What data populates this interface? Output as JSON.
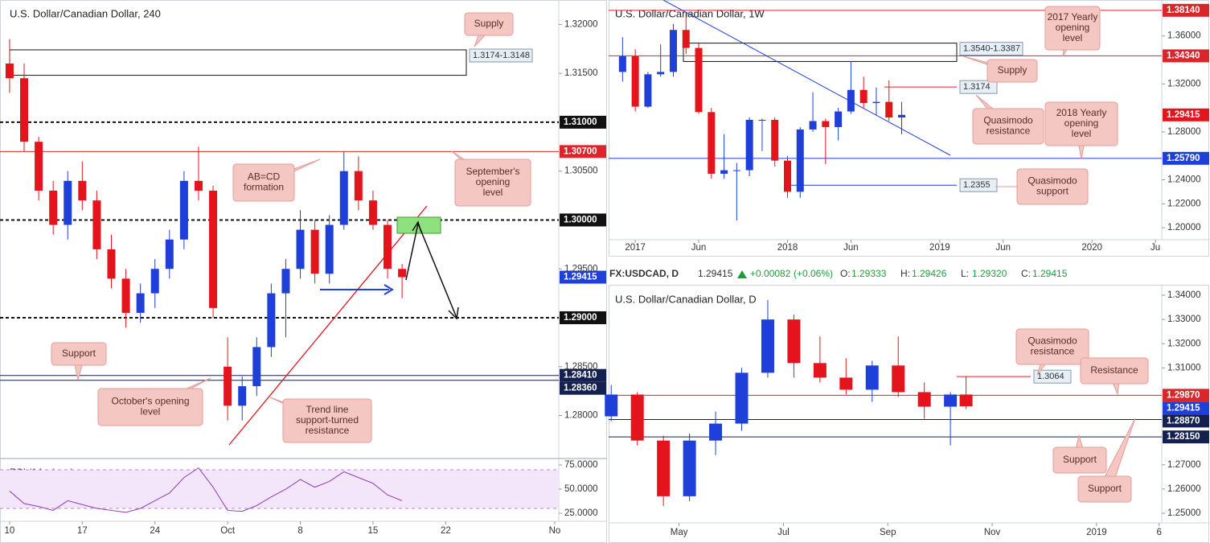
{
  "chart_data": [
    {
      "type": "candlestick",
      "title": "U.S. Dollar/Canadian Dollar, 240",
      "up_color": "#1f3fd9",
      "down_color": "#e3141c",
      "open": [
        1.316,
        1.3145,
        1.308,
        1.303,
        1.2995,
        1.304,
        1.302,
        1.297,
        1.294,
        1.2905,
        1.2925,
        1.295,
        1.298,
        1.304,
        1.303,
        1.285,
        1.281,
        1.283,
        1.287,
        1.2925,
        1.295,
        1.299,
        1.2945,
        1.2995,
        1.305,
        1.302,
        1.2995,
        1.295
      ],
      "high": [
        1.3185,
        1.316,
        1.3085,
        1.304,
        1.305,
        1.306,
        1.303,
        1.2985,
        1.295,
        1.2935,
        1.296,
        1.299,
        1.305,
        1.3075,
        1.3035,
        1.288,
        1.284,
        1.288,
        1.2935,
        1.296,
        1.301,
        1.3,
        1.3005,
        1.307,
        1.3065,
        1.303,
        1.3,
        1.2955
      ],
      "low": [
        1.313,
        1.307,
        1.302,
        1.2985,
        1.298,
        1.301,
        1.296,
        1.293,
        1.289,
        1.2895,
        1.291,
        1.294,
        1.297,
        1.302,
        1.29,
        1.2795,
        1.2795,
        1.282,
        1.286,
        1.288,
        1.294,
        1.2935,
        1.2935,
        1.299,
        1.301,
        1.299,
        1.294,
        1.292
      ],
      "close": [
        1.3145,
        1.308,
        1.303,
        1.2995,
        1.304,
        1.302,
        1.297,
        1.294,
        1.2905,
        1.2925,
        1.295,
        1.298,
        1.304,
        1.303,
        1.291,
        1.281,
        1.283,
        1.287,
        1.2925,
        1.295,
        1.299,
        1.2945,
        1.2995,
        1.305,
        1.302,
        1.2995,
        1.295,
        1.29415
      ],
      "xlim": [
        -0.66,
        37.78
      ],
      "xticks": [
        {
          "value": 0,
          "label": "10"
        },
        {
          "value": 5,
          "label": "17"
        },
        {
          "value": 10,
          "label": "24"
        },
        {
          "value": 15,
          "label": "Oct"
        },
        {
          "value": 20,
          "label": "8"
        },
        {
          "value": 25,
          "label": "15"
        },
        {
          "value": 30,
          "label": "22"
        },
        {
          "value": 37.5,
          "label": "No"
        }
      ],
      "ylim": [
        1.2756,
        1.3225
      ],
      "yticks": [
        {
          "value": 1.32,
          "label": "1.32000"
        },
        {
          "value": 1.315,
          "label": "1.31500"
        },
        {
          "value": 1.305,
          "label": "1.30500"
        },
        {
          "value": 1.295,
          "label": "1.29500"
        },
        {
          "value": 1.285,
          "label": "1.28500"
        },
        {
          "value": 1.28,
          "label": "1.28000"
        }
      ],
      "price_lines": [
        {
          "value": 1.31,
          "label": "1.31000",
          "color": "#111111",
          "style": "dashed"
        },
        {
          "value": 1.307,
          "label": "1.30700",
          "color": "#d9262b",
          "style": "solid"
        },
        {
          "value": 1.3,
          "label": "1.30000",
          "color": "#111111",
          "style": "dashed"
        },
        {
          "value": 1.29415,
          "label": "1.29415",
          "color": "#1f3fd9",
          "style": "label"
        },
        {
          "value": 1.29,
          "label": "1.29000",
          "color": "#111111",
          "style": "dashed"
        },
        {
          "value": 1.2841,
          "label": "1.28410",
          "color": "#14204f",
          "style": "solid"
        },
        {
          "value": 1.2836,
          "label": "1.28360",
          "color": "#14204f",
          "style": "solid"
        }
      ],
      "zones": [
        {
          "values": [
            1.3174,
            1.3148
          ],
          "label": "1.3174-1.3148"
        }
      ],
      "levels": [],
      "callouts": [
        {
          "text": [
            "Supply"
          ]
        },
        {
          "text": [
            "AB=CD",
            "formation"
          ]
        },
        {
          "text": [
            "September's",
            "opening",
            "level"
          ]
        },
        {
          "text": [
            "Support"
          ]
        },
        {
          "text": [
            "October's opening",
            "level"
          ]
        },
        {
          "text": [
            "Trend line",
            "support-turned",
            "resistance"
          ]
        }
      ]
    },
    {
      "type": "rsi",
      "title": "RSI (14, close)",
      "color": "#8e3ab5",
      "values": [
        48,
        35,
        32,
        28,
        38,
        34,
        30,
        28,
        26,
        30,
        38,
        46,
        62,
        72,
        52,
        28,
        27,
        33,
        42,
        50,
        60,
        52,
        58,
        68,
        62,
        56,
        44,
        38
      ],
      "band": [
        30,
        70
      ],
      "ylim": [
        16.7,
        81.7
      ],
      "yticks": [
        {
          "value": 75,
          "label": "75.0000"
        },
        {
          "value": 50,
          "label": "50.0000"
        },
        {
          "value": 25,
          "label": "25.0000"
        }
      ]
    },
    {
      "type": "candlestick",
      "title": "U.S. Dollar/Canadian Dollar, 1W",
      "up_color": "#1f3fd9",
      "down_color": "#e3141c",
      "x": [
        -1,
        0,
        1,
        2,
        3,
        4,
        5,
        6,
        7,
        8,
        9,
        10,
        11,
        12,
        13,
        14,
        15,
        16,
        17,
        18,
        19,
        20,
        21
      ],
      "open": [
        1.33,
        1.343,
        1.301,
        1.328,
        1.33,
        1.365,
        1.35,
        1.2965,
        1.245,
        1.248,
        1.248,
        1.29,
        1.29,
        1.256,
        1.23,
        1.282,
        1.289,
        1.284,
        1.297,
        1.315,
        1.304,
        1.305,
        1.292
      ],
      "high": [
        1.359,
        1.349,
        1.33,
        1.353,
        1.37,
        1.379,
        1.354,
        1.3,
        1.278,
        1.254,
        1.292,
        1.291,
        1.292,
        1.26,
        1.284,
        1.313,
        1.291,
        1.3,
        1.339,
        1.326,
        1.317,
        1.323,
        1.305
      ],
      "low": [
        1.322,
        1.297,
        1.3,
        1.326,
        1.326,
        1.345,
        1.295,
        1.241,
        1.241,
        1.206,
        1.243,
        1.264,
        1.251,
        1.225,
        1.225,
        1.28,
        1.253,
        1.273,
        1.295,
        1.3,
        1.294,
        1.289,
        1.278
      ],
      "close": [
        1.343,
        1.301,
        1.328,
        1.33,
        1.365,
        1.35,
        1.2965,
        1.245,
        1.248,
        1.248,
        1.29,
        1.29,
        1.256,
        1.23,
        1.282,
        1.289,
        1.284,
        1.297,
        1.315,
        1.304,
        1.305,
        1.292,
        1.29415
      ],
      "xlim": [
        -2.1,
        41.5
      ],
      "xticks": [
        {
          "value": 0,
          "label": "2017"
        },
        {
          "value": 5,
          "label": "Jun"
        },
        {
          "value": 12,
          "label": "2018"
        },
        {
          "value": 17,
          "label": "Jun"
        },
        {
          "value": 24,
          "label": "2019"
        },
        {
          "value": 29,
          "label": "Jun"
        },
        {
          "value": 36,
          "label": "2020"
        },
        {
          "value": 41,
          "label": "Ju"
        }
      ],
      "ylim": [
        1.19,
        1.39
      ],
      "yticks": [
        {
          "value": 1.36,
          "label": "1.36000"
        },
        {
          "value": 1.32,
          "label": "1.32000"
        },
        {
          "value": 1.28,
          "label": "1.28000"
        },
        {
          "value": 1.24,
          "label": "1.24000"
        },
        {
          "value": 1.22,
          "label": "1.22000"
        },
        {
          "value": 1.2,
          "label": "1.20000"
        }
      ],
      "price_lines": [
        {
          "value": 1.3814,
          "label": "1.38140",
          "color": "#d9262b",
          "style": "solid"
        },
        {
          "value": 1.3434,
          "label": "1.34340",
          "color": "#d9262b",
          "style": "solid"
        },
        {
          "value": 1.29415,
          "label": "1.29415",
          "color": "#e3141c",
          "style": "label"
        },
        {
          "value": 1.2579,
          "label": "1.25790",
          "color": "#1f3fd9",
          "style": "solid"
        }
      ],
      "zones": [
        {
          "values": [
            1.354,
            1.3387
          ],
          "label": "1.3540-1.3387"
        }
      ],
      "levels": [
        {
          "value": 1.3174,
          "label": "1.3174",
          "color": "#d9262b"
        },
        {
          "value": 1.2355,
          "label": "1.2355",
          "color": "#1f3fd9"
        }
      ],
      "callouts": [
        {
          "text": [
            "Supply"
          ]
        },
        {
          "text": [
            "2017 Yearly",
            "opening",
            "level"
          ]
        },
        {
          "text": [
            "Quasimodo",
            "resistance"
          ]
        },
        {
          "text": [
            "2018 Yearly",
            "opening",
            "level"
          ]
        },
        {
          "text": [
            "Quasimodo",
            "support"
          ]
        }
      ]
    },
    {
      "type": "candlestick",
      "title": "U.S. Dollar/Canadian Dollar, D",
      "up_color": "#1f3fd9",
      "down_color": "#e3141c",
      "x": [
        -1.3,
        -0.8,
        -0.3,
        0.2,
        0.7,
        1.2,
        1.7,
        2.2,
        2.7,
        3.2,
        3.7,
        4.2,
        4.7,
        5.2,
        5.5
      ],
      "open": [
        1.29,
        1.299,
        1.28,
        1.257,
        1.28,
        1.287,
        1.308,
        1.33,
        1.312,
        1.306,
        1.301,
        1.311,
        1.3,
        1.294,
        1.299
      ],
      "high": [
        1.303,
        1.3,
        1.282,
        1.283,
        1.292,
        1.31,
        1.338,
        1.332,
        1.323,
        1.314,
        1.313,
        1.323,
        1.304,
        1.3,
        1.3064
      ],
      "low": [
        1.288,
        1.278,
        1.253,
        1.255,
        1.274,
        1.284,
        1.306,
        1.306,
        1.304,
        1.299,
        1.296,
        1.298,
        1.289,
        1.278,
        1.293
      ],
      "close": [
        1.299,
        1.28,
        1.257,
        1.28,
        1.287,
        1.308,
        1.33,
        1.312,
        1.306,
        1.301,
        1.311,
        1.3,
        1.294,
        1.299,
        1.29415
      ],
      "xlim": [
        -1.35,
        9.25
      ],
      "xticks": [
        {
          "value": 0,
          "label": "May"
        },
        {
          "value": 2,
          "label": "Jul"
        },
        {
          "value": 4,
          "label": "Sep"
        },
        {
          "value": 6,
          "label": "Nov"
        },
        {
          "value": 8,
          "label": "2019"
        },
        {
          "value": 9.2,
          "label": "6"
        }
      ],
      "ylim": [
        1.246,
        1.344
      ],
      "yticks": [
        {
          "value": 1.34,
          "label": "1.34000"
        },
        {
          "value": 1.33,
          "label": "1.33000"
        },
        {
          "value": 1.32,
          "label": "1.32000"
        },
        {
          "value": 1.31,
          "label": "1.31000"
        },
        {
          "value": 1.27,
          "label": "1.27000"
        },
        {
          "value": 1.26,
          "label": "1.26000"
        },
        {
          "value": 1.25,
          "label": "1.25000"
        }
      ],
      "price_lines": [
        {
          "value": 1.2987,
          "label": "1.29870",
          "color": "#d9262b",
          "style": "solid"
        },
        {
          "value": 1.29415,
          "label": "1.29415",
          "color": "#1f3fd9",
          "style": "label"
        },
        {
          "value": 1.2887,
          "label": "1.28870",
          "color": "#14204f",
          "style": "solid"
        },
        {
          "value": 1.2815,
          "label": "1.28150",
          "color": "#14204f",
          "style": "solid"
        }
      ],
      "zones": [],
      "levels": [
        {
          "value": 1.3064,
          "label": "1.3064",
          "color": "#d9262b"
        }
      ],
      "callouts": [
        {
          "text": [
            "Quasimodo",
            "resistance"
          ]
        },
        {
          "text": [
            "Resistance"
          ]
        },
        {
          "text": [
            "Support"
          ]
        },
        {
          "text": [
            "Support"
          ]
        }
      ]
    }
  ],
  "info_bar": {
    "symbol": "FX:USDCAD, D",
    "last": "1.29415",
    "change": "+0.00082",
    "change_pct": "(+0.06%)",
    "ohlc": [
      {
        "label": "O:",
        "value": "1.29333"
      },
      {
        "label": "H:",
        "value": "1.29426"
      },
      {
        "label": "L:",
        "value": "1.29320"
      },
      {
        "label": "C:",
        "value": "1.29415"
      }
    ]
  }
}
